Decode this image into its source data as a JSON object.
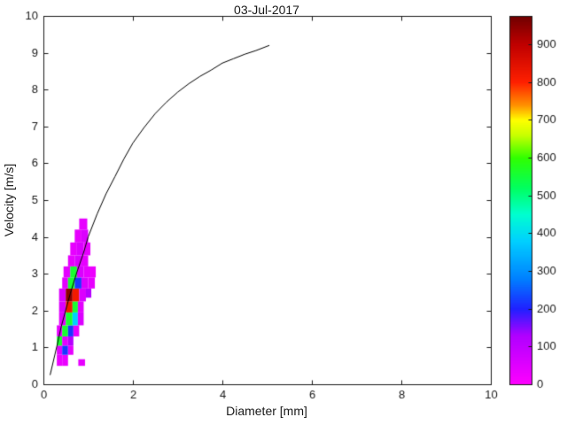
{
  "chart_data": {
    "type": "heatmap",
    "title": "03-Jul-2017",
    "xlabel": "Diameter [mm]",
    "ylabel": "Velocity [m/s]",
    "xlim": [
      0,
      10
    ],
    "ylim": [
      0,
      10
    ],
    "xticks": [
      0,
      2,
      4,
      6,
      8,
      10
    ],
    "yticks": [
      0,
      1,
      2,
      3,
      4,
      5,
      6,
      7,
      8,
      9,
      10
    ],
    "grid": false,
    "background": "#ffffff",
    "axis_color": "#1a1a1a",
    "colorbar": {
      "position": "right",
      "min": 0,
      "max": 975,
      "ticks": [
        0,
        100,
        200,
        300,
        400,
        500,
        600,
        700,
        800,
        900
      ],
      "stops": [
        [
          0,
          "#ff00ff"
        ],
        [
          130,
          "#b000ff"
        ],
        [
          200,
          "#2020ff"
        ],
        [
          280,
          "#0080ff"
        ],
        [
          380,
          "#00d0ff"
        ],
        [
          450,
          "#00ffd0"
        ],
        [
          520,
          "#00ff60"
        ],
        [
          600,
          "#30ff00"
        ],
        [
          660,
          "#c8ff00"
        ],
        [
          700,
          "#ffff00"
        ],
        [
          740,
          "#ff9000"
        ],
        [
          800,
          "#ff2000"
        ],
        [
          900,
          "#c00000"
        ],
        [
          975,
          "#700000"
        ]
      ]
    },
    "cells_format": [
      "diameter_left_mm",
      "velocity_bottom_ms",
      "width_mm",
      "height_ms",
      "count"
    ],
    "cells": [
      [
        0.3,
        0.5,
        0.12,
        0.3,
        30
      ],
      [
        0.42,
        0.5,
        0.13,
        0.3,
        35
      ],
      [
        0.78,
        0.5,
        0.15,
        0.18,
        40
      ],
      [
        0.3,
        0.8,
        0.12,
        0.25,
        45
      ],
      [
        0.42,
        0.8,
        0.13,
        0.25,
        220
      ],
      [
        0.55,
        0.8,
        0.12,
        0.25,
        40
      ],
      [
        0.3,
        1.05,
        0.12,
        0.25,
        560
      ],
      [
        0.42,
        1.05,
        0.13,
        0.25,
        45
      ],
      [
        0.55,
        1.05,
        0.12,
        0.25,
        120
      ],
      [
        0.3,
        1.3,
        0.12,
        0.3,
        40
      ],
      [
        0.42,
        1.3,
        0.13,
        0.3,
        560
      ],
      [
        0.55,
        1.3,
        0.12,
        0.3,
        220
      ],
      [
        0.67,
        1.3,
        0.13,
        0.3,
        40
      ],
      [
        0.35,
        1.6,
        0.15,
        0.35,
        45
      ],
      [
        0.5,
        1.6,
        0.15,
        0.35,
        560
      ],
      [
        0.65,
        1.6,
        0.12,
        0.35,
        380
      ],
      [
        0.77,
        1.6,
        0.13,
        0.35,
        60
      ],
      [
        0.35,
        1.95,
        0.15,
        0.3,
        60
      ],
      [
        0.5,
        1.95,
        0.15,
        0.3,
        820
      ],
      [
        0.65,
        1.95,
        0.12,
        0.3,
        560
      ],
      [
        0.77,
        1.95,
        0.13,
        0.3,
        45
      ],
      [
        0.35,
        2.25,
        0.15,
        0.35,
        60
      ],
      [
        0.5,
        2.25,
        0.15,
        0.35,
        950
      ],
      [
        0.65,
        2.25,
        0.15,
        0.35,
        820
      ],
      [
        0.8,
        2.25,
        0.15,
        0.35,
        60
      ],
      [
        0.95,
        2.35,
        0.12,
        0.25,
        120
      ],
      [
        0.42,
        2.6,
        0.13,
        0.3,
        45
      ],
      [
        0.55,
        2.6,
        0.15,
        0.3,
        560
      ],
      [
        0.7,
        2.6,
        0.15,
        0.3,
        220
      ],
      [
        0.85,
        2.6,
        0.15,
        0.3,
        60
      ],
      [
        1.0,
        2.6,
        0.15,
        0.3,
        40
      ],
      [
        0.45,
        2.9,
        0.15,
        0.3,
        45
      ],
      [
        0.6,
        2.9,
        0.15,
        0.3,
        560
      ],
      [
        0.75,
        2.9,
        0.15,
        0.3,
        60
      ],
      [
        0.9,
        2.9,
        0.15,
        0.3,
        40
      ],
      [
        1.05,
        2.9,
        0.12,
        0.3,
        30
      ],
      [
        0.55,
        3.2,
        0.15,
        0.3,
        40
      ],
      [
        0.7,
        3.2,
        0.15,
        0.3,
        60
      ],
      [
        0.85,
        3.2,
        0.15,
        0.3,
        40
      ],
      [
        0.6,
        3.5,
        0.15,
        0.35,
        40
      ],
      [
        0.75,
        3.5,
        0.15,
        0.35,
        60
      ],
      [
        0.9,
        3.5,
        0.15,
        0.35,
        40
      ],
      [
        0.7,
        3.85,
        0.15,
        0.35,
        40
      ],
      [
        0.85,
        3.85,
        0.15,
        0.35,
        60
      ],
      [
        0.8,
        4.2,
        0.18,
        0.3,
        40
      ]
    ],
    "curve": {
      "name": "terminal-velocity-curve",
      "color": "#000000",
      "points": [
        [
          0.15,
          0.25
        ],
        [
          0.3,
          1.03
        ],
        [
          0.4,
          1.57
        ],
        [
          0.5,
          2.02
        ],
        [
          0.6,
          2.46
        ],
        [
          0.75,
          3.05
        ],
        [
          0.9,
          3.58
        ],
        [
          1.0,
          4.0
        ],
        [
          1.2,
          4.62
        ],
        [
          1.4,
          5.17
        ],
        [
          1.6,
          5.64
        ],
        [
          1.8,
          6.12
        ],
        [
          2.0,
          6.55
        ],
        [
          2.25,
          6.97
        ],
        [
          2.5,
          7.35
        ],
        [
          2.75,
          7.66
        ],
        [
          3.0,
          7.93
        ],
        [
          3.25,
          8.16
        ],
        [
          3.5,
          8.36
        ],
        [
          3.75,
          8.53
        ],
        [
          4.0,
          8.72
        ],
        [
          4.25,
          8.84
        ],
        [
          4.5,
          8.96
        ],
        [
          4.75,
          9.06
        ],
        [
          5.05,
          9.2
        ]
      ]
    }
  }
}
